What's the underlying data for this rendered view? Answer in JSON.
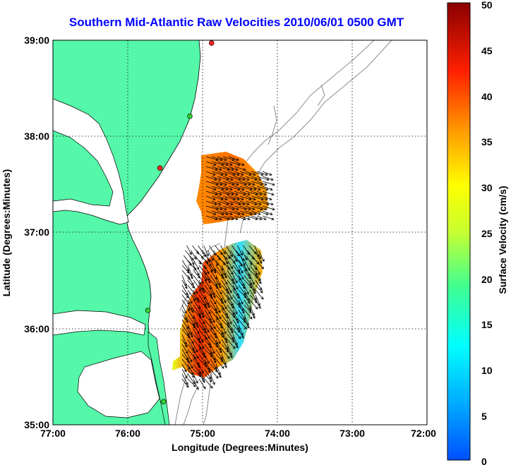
{
  "title": "Southern Mid-Atlantic Raw Velocities 2010/06/01 0500 GMT",
  "xlabel": "Longitude (Degrees:Minutes)",
  "ylabel": "Latitude (Degrees:Minutes)",
  "x_ticks": [
    "77:00",
    "76:00",
    "75:00",
    "74:00",
    "73:00",
    "72:00"
  ],
  "y_ticks": [
    "39:00",
    "38:00",
    "37:00",
    "36:00",
    "35:00"
  ],
  "colorbar": {
    "label": "Surface Velocity (cm/s)",
    "ticks": [
      "50",
      "45",
      "40",
      "35",
      "30",
      "25",
      "20",
      "15",
      "10",
      "5",
      "0"
    ]
  },
  "colors": {
    "land": "#55f8a8",
    "title": "#0000ff",
    "bathymetry": "#8c8c8c"
  },
  "stations": [
    {
      "lon": -74.88,
      "lat": 38.97,
      "color": "#ff2020"
    },
    {
      "lon": -75.17,
      "lat": 38.21,
      "color": "#33cc33"
    },
    {
      "lon": -75.57,
      "lat": 37.67,
      "color": "#ff2020"
    },
    {
      "lon": -75.73,
      "lat": 36.19,
      "color": "#33cc33"
    },
    {
      "lon": -75.52,
      "lat": 35.24,
      "color": "#33cc33"
    }
  ]
}
